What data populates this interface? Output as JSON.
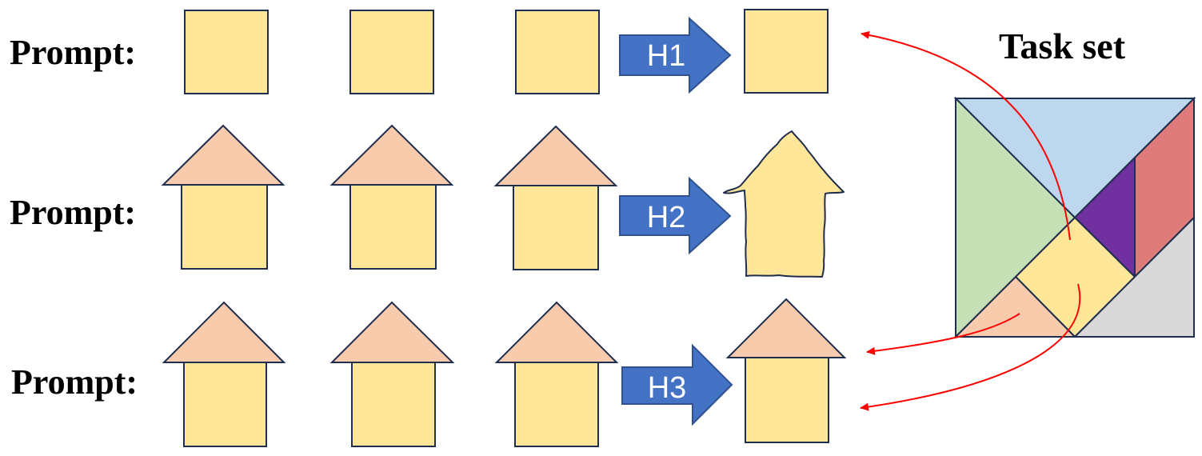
{
  "colors": {
    "square": "#FFE699",
    "roof": "#F8CBAD",
    "outline": "#1F2D4E",
    "arrow_fill": "#4472C4",
    "arrow_stroke": "#2F528F",
    "connector": "#FF0000",
    "tan_blue": "#BDD7EE",
    "tan_green": "#C5E0B4",
    "tan_purple": "#7030A0",
    "tan_red": "#E07B7B",
    "tan_yellow": "#FFE699",
    "tan_peach": "#F8CBAD",
    "tan_grey": "#D9D9D9"
  },
  "rows": [
    {
      "label": "Prompt:",
      "arrow_label": "H1"
    },
    {
      "label": "Prompt:",
      "arrow_label": "H2"
    },
    {
      "label": "Prompt:",
      "arrow_label": "H3"
    }
  ],
  "task_set": {
    "title": "Task set"
  }
}
